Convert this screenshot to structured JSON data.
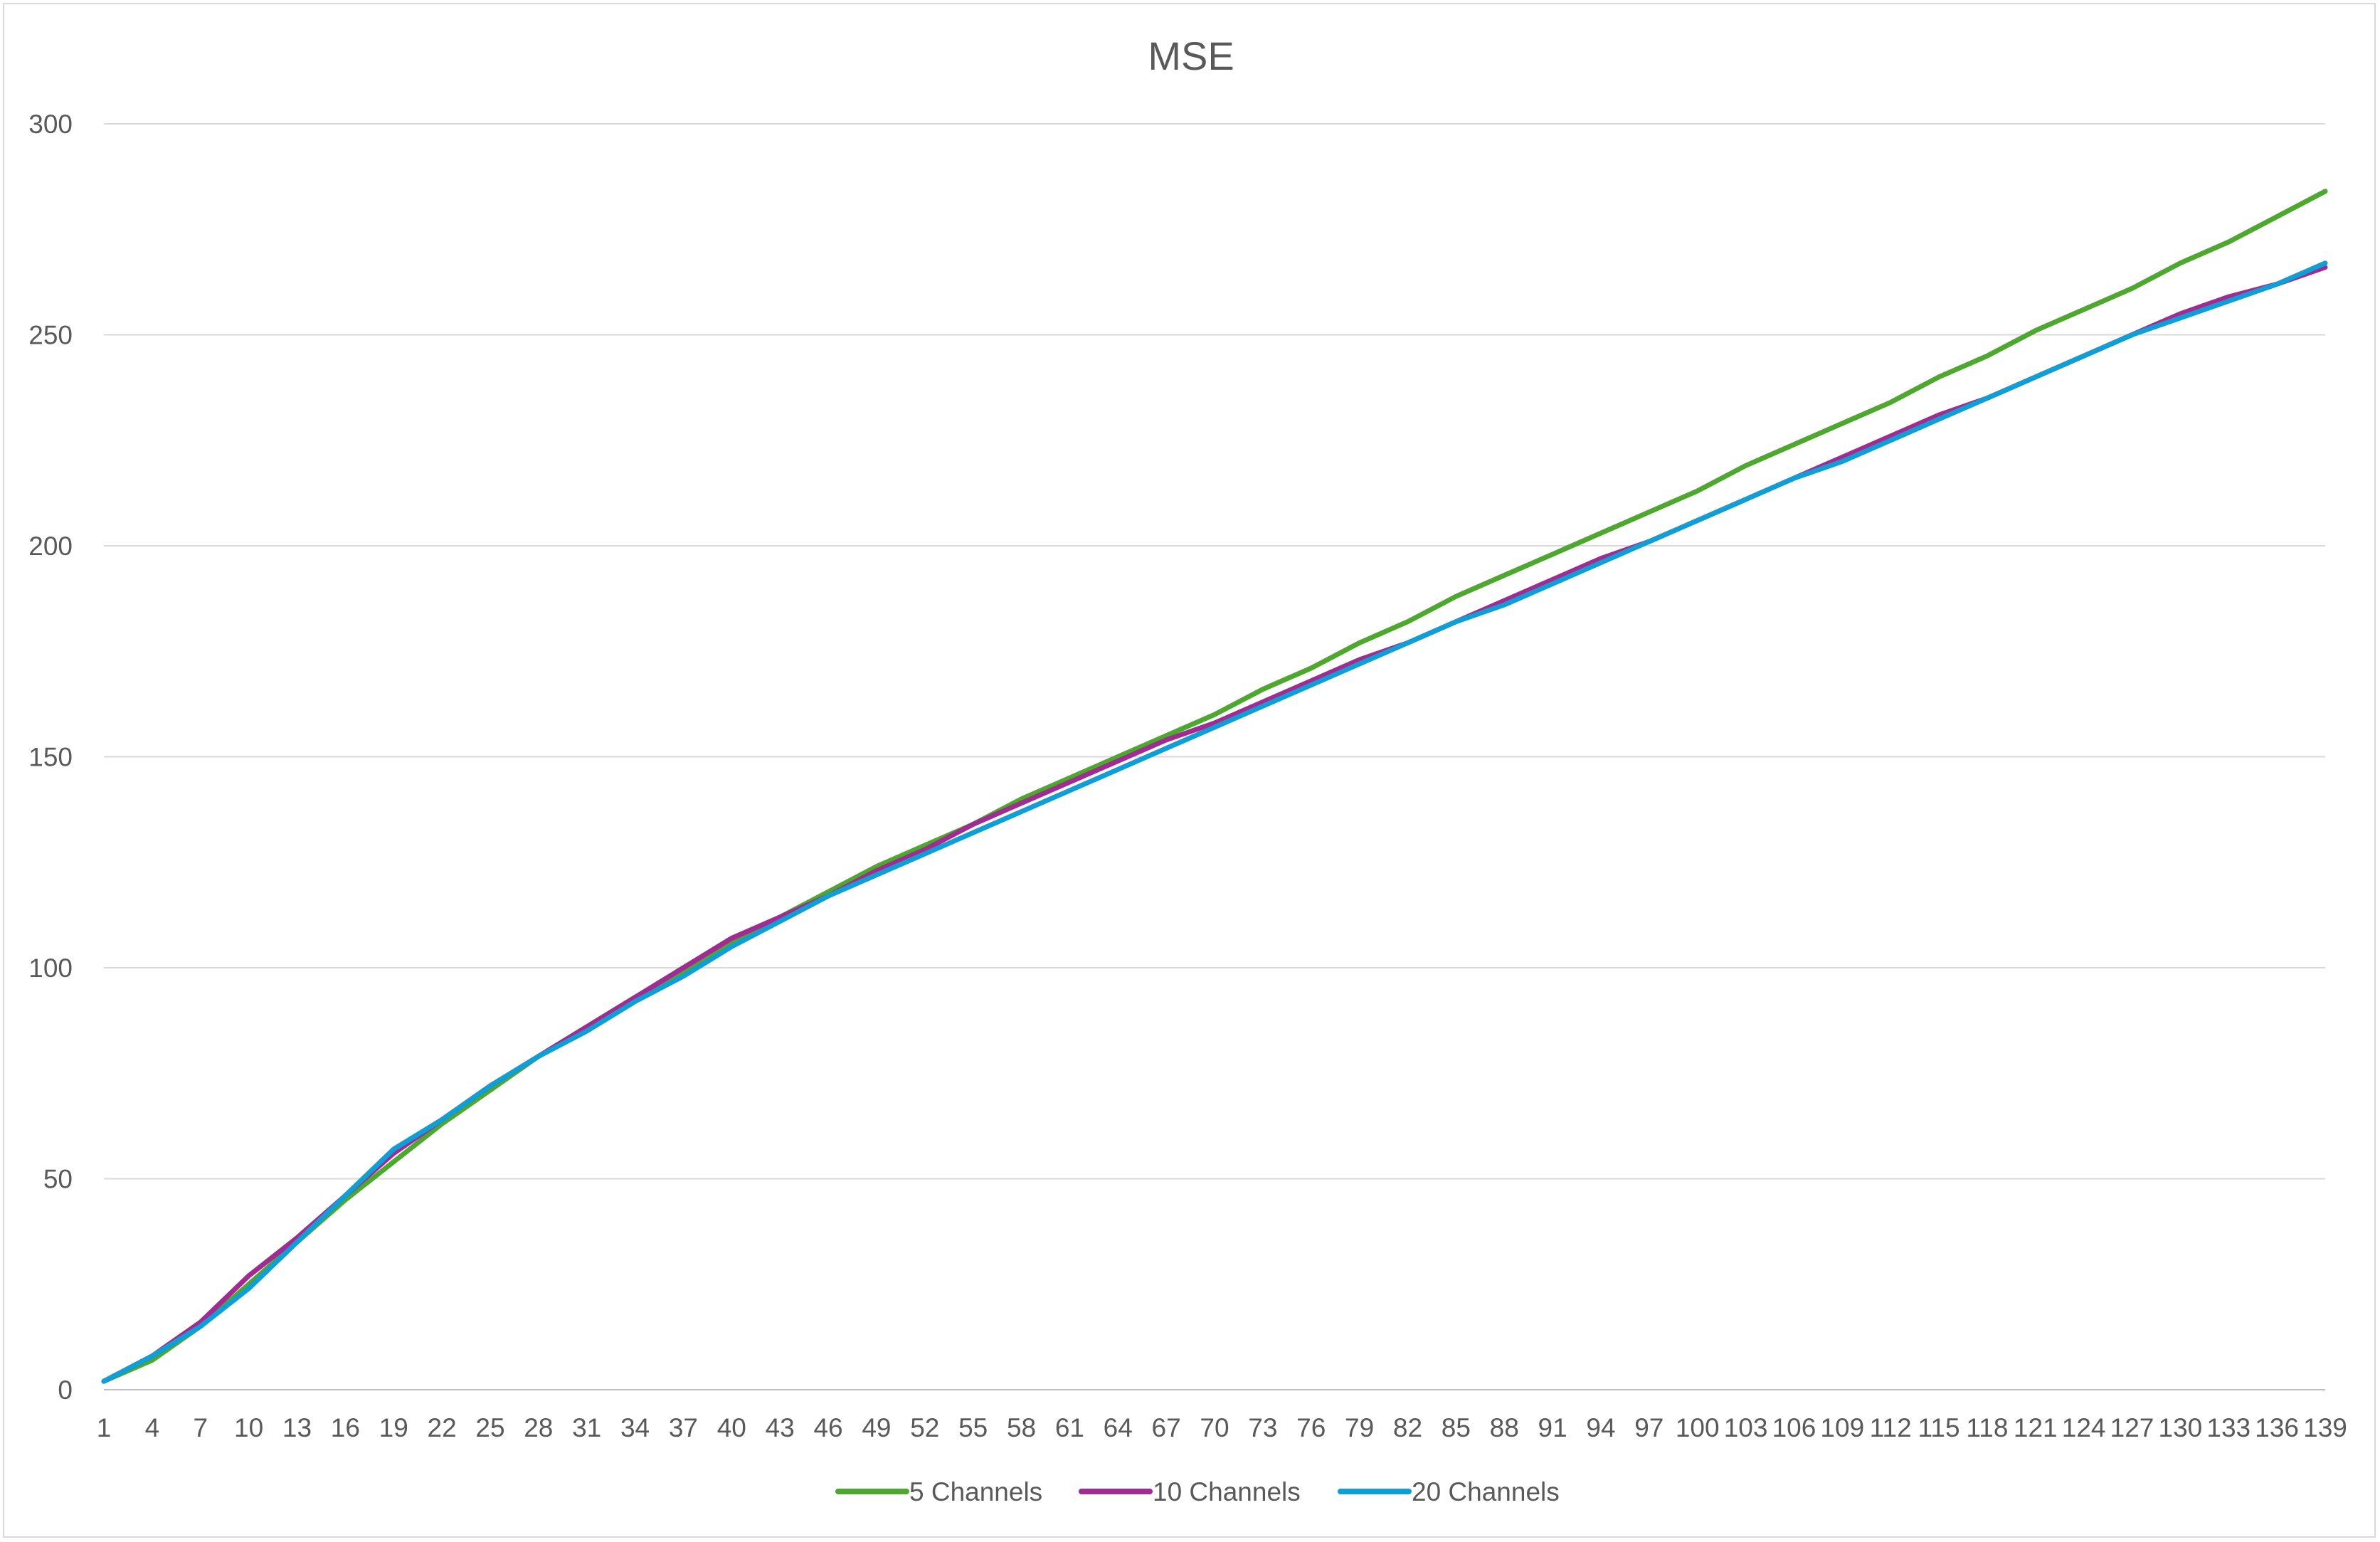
{
  "chart_data": {
    "type": "line",
    "title": "MSE",
    "xlabel": "",
    "ylabel": "",
    "ylim": [
      0,
      300
    ],
    "yticks": [
      0,
      50,
      100,
      150,
      200,
      250,
      300
    ],
    "xlim": [
      1,
      139
    ],
    "xticks": [
      1,
      4,
      7,
      10,
      13,
      16,
      19,
      22,
      25,
      28,
      31,
      34,
      37,
      40,
      43,
      46,
      49,
      52,
      55,
      58,
      61,
      64,
      67,
      70,
      73,
      76,
      79,
      82,
      85,
      88,
      91,
      94,
      97,
      100,
      103,
      106,
      109,
      112,
      115,
      118,
      121,
      124,
      127,
      130,
      133,
      136,
      139
    ],
    "grid": true,
    "legend_position": "bottom",
    "series": [
      {
        "name": "5 Channels",
        "color": "#4ea72e",
        "points": [
          [
            1,
            2
          ],
          [
            4,
            7
          ],
          [
            7,
            15
          ],
          [
            10,
            25
          ],
          [
            13,
            35
          ],
          [
            16,
            45
          ],
          [
            19,
            54
          ],
          [
            22,
            63
          ],
          [
            25,
            71
          ],
          [
            28,
            79
          ],
          [
            31,
            86
          ],
          [
            34,
            93
          ],
          [
            37,
            99
          ],
          [
            40,
            106
          ],
          [
            43,
            112
          ],
          [
            46,
            118
          ],
          [
            49,
            124
          ],
          [
            52,
            129
          ],
          [
            55,
            134
          ],
          [
            58,
            140
          ],
          [
            61,
            145
          ],
          [
            64,
            150
          ],
          [
            67,
            155
          ],
          [
            70,
            160
          ],
          [
            73,
            166
          ],
          [
            76,
            171
          ],
          [
            79,
            177
          ],
          [
            82,
            182
          ],
          [
            85,
            188
          ],
          [
            88,
            193
          ],
          [
            91,
            198
          ],
          [
            94,
            203
          ],
          [
            97,
            208
          ],
          [
            100,
            213
          ],
          [
            103,
            219
          ],
          [
            106,
            224
          ],
          [
            109,
            229
          ],
          [
            112,
            234
          ],
          [
            115,
            240
          ],
          [
            118,
            245
          ],
          [
            121,
            251
          ],
          [
            124,
            256
          ],
          [
            127,
            261
          ],
          [
            130,
            267
          ],
          [
            133,
            272
          ],
          [
            136,
            278
          ],
          [
            139,
            284
          ]
        ]
      },
      {
        "name": "10 Channels",
        "color": "#a02b93",
        "points": [
          [
            1,
            2
          ],
          [
            4,
            8
          ],
          [
            7,
            16
          ],
          [
            10,
            27
          ],
          [
            13,
            36
          ],
          [
            16,
            46
          ],
          [
            19,
            56
          ],
          [
            22,
            64
          ],
          [
            25,
            72
          ],
          [
            28,
            79
          ],
          [
            31,
            86
          ],
          [
            34,
            93
          ],
          [
            37,
            100
          ],
          [
            40,
            107
          ],
          [
            43,
            112
          ],
          [
            46,
            117
          ],
          [
            49,
            123
          ],
          [
            52,
            128
          ],
          [
            55,
            134
          ],
          [
            58,
            139
          ],
          [
            61,
            144
          ],
          [
            64,
            149
          ],
          [
            67,
            154
          ],
          [
            70,
            158
          ],
          [
            73,
            163
          ],
          [
            76,
            168
          ],
          [
            79,
            173
          ],
          [
            82,
            177
          ],
          [
            85,
            182
          ],
          [
            88,
            187
          ],
          [
            91,
            192
          ],
          [
            94,
            197
          ],
          [
            97,
            201
          ],
          [
            100,
            206
          ],
          [
            103,
            211
          ],
          [
            106,
            216
          ],
          [
            109,
            221
          ],
          [
            112,
            226
          ],
          [
            115,
            231
          ],
          [
            118,
            235
          ],
          [
            121,
            240
          ],
          [
            124,
            245
          ],
          [
            127,
            250
          ],
          [
            130,
            255
          ],
          [
            133,
            259
          ],
          [
            136,
            262
          ],
          [
            139,
            266
          ]
        ]
      },
      {
        "name": "20 Channels",
        "color": "#0f9ed5",
        "points": [
          [
            1,
            2
          ],
          [
            4,
            8
          ],
          [
            7,
            15
          ],
          [
            10,
            24
          ],
          [
            13,
            35
          ],
          [
            16,
            46
          ],
          [
            19,
            57
          ],
          [
            22,
            64
          ],
          [
            25,
            72
          ],
          [
            28,
            79
          ],
          [
            31,
            85
          ],
          [
            34,
            92
          ],
          [
            37,
            98
          ],
          [
            40,
            105
          ],
          [
            43,
            111
          ],
          [
            46,
            117
          ],
          [
            49,
            122
          ],
          [
            52,
            127
          ],
          [
            55,
            132
          ],
          [
            58,
            137
          ],
          [
            61,
            142
          ],
          [
            64,
            147
          ],
          [
            67,
            152
          ],
          [
            70,
            157
          ],
          [
            73,
            162
          ],
          [
            76,
            167
          ],
          [
            79,
            172
          ],
          [
            82,
            177
          ],
          [
            85,
            182
          ],
          [
            88,
            186
          ],
          [
            91,
            191
          ],
          [
            94,
            196
          ],
          [
            97,
            201
          ],
          [
            100,
            206
          ],
          [
            103,
            211
          ],
          [
            106,
            216
          ],
          [
            109,
            220
          ],
          [
            112,
            225
          ],
          [
            115,
            230
          ],
          [
            118,
            235
          ],
          [
            121,
            240
          ],
          [
            124,
            245
          ],
          [
            127,
            250
          ],
          [
            130,
            254
          ],
          [
            133,
            258
          ],
          [
            136,
            262
          ],
          [
            139,
            267
          ]
        ]
      }
    ]
  }
}
